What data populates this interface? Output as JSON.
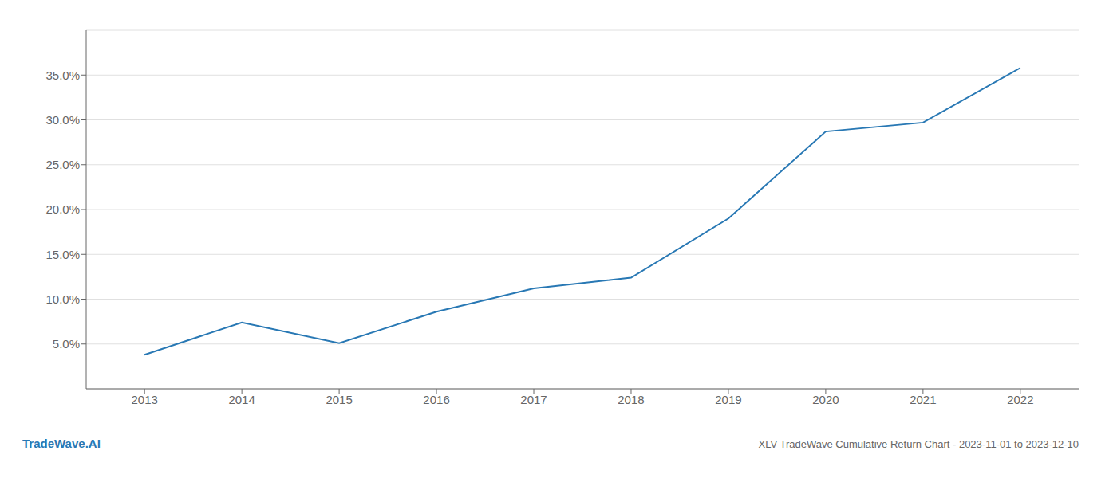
{
  "chart_data": {
    "type": "line",
    "title": "XLV TradeWave Cumulative Return Chart - 2023-11-01 to 2023-12-10",
    "annotations": [
      "TradeWave.AI"
    ],
    "x": [
      2013,
      2014,
      2015,
      2016,
      2017,
      2018,
      2019,
      2020,
      2021,
      2022
    ],
    "values": [
      3.8,
      7.4,
      5.1,
      8.6,
      11.2,
      12.4,
      19.0,
      28.7,
      29.7,
      35.8
    ],
    "color": "#2878b4",
    "xlim": [
      2012.4,
      2022.6
    ],
    "xticks": [
      2013,
      2014,
      2015,
      2016,
      2017,
      2018,
      2019,
      2020,
      2021,
      2022
    ],
    "ylim": [
      0,
      40
    ],
    "yticks": [
      {
        "value": 5.0,
        "label": "5.0%"
      },
      {
        "value": 10.0,
        "label": "10.0%"
      },
      {
        "value": 15.0,
        "label": "15.0%"
      },
      {
        "value": 20.0,
        "label": "20.0%"
      },
      {
        "value": 25.0,
        "label": "25.0%"
      },
      {
        "value": 30.0,
        "label": "30.0%"
      },
      {
        "value": 35.0,
        "label": "35.0%"
      }
    ],
    "grid": true
  }
}
